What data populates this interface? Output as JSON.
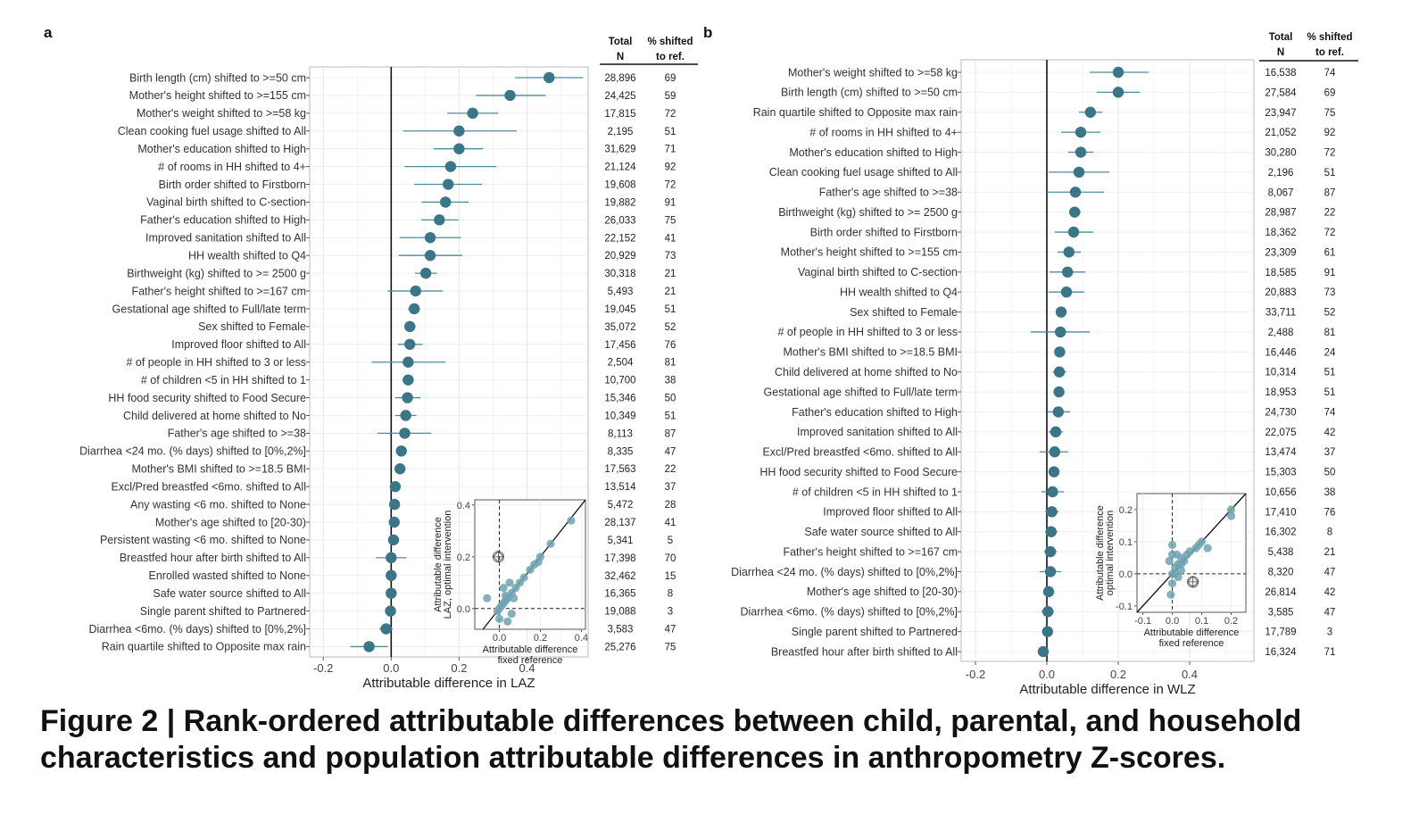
{
  "figure": {
    "caption": "Figure 2 | Rank-ordered attributable differences between child, parental, and household characteristics and population attributable differences in anthropometry Z-scores."
  },
  "colors": {
    "point": "#3a7688",
    "ci": "#4d8b9b",
    "inset_point": "#6fa3b1",
    "grid": "#ebebeb"
  },
  "table_headers": {
    "total_line1": "Total",
    "total_line2": "N",
    "pct_line1": "% shifted",
    "pct_line2": "to ref."
  },
  "chart_data": [
    {
      "panel": "a",
      "type": "scatter",
      "subtype": "forest-plot",
      "xlabel": "Attributable difference in LAZ",
      "xlim": [
        -0.24,
        0.58
      ],
      "xticks": [
        -0.2,
        0.0,
        0.2,
        0.4
      ],
      "xtick_labels": [
        "-0.2",
        "0.0",
        "0.2",
        "0.4"
      ],
      "reference_line": 0,
      "grid": true,
      "rows": [
        {
          "label": "Birth length (cm) shifted to >=50 cm",
          "est": 0.465,
          "lo": 0.365,
          "hi": 0.565,
          "n": "28,896",
          "pct": "69"
        },
        {
          "label": "Mother's height shifted to >=155 cm",
          "est": 0.35,
          "lo": 0.25,
          "hi": 0.455,
          "n": "24,425",
          "pct": "59"
        },
        {
          "label": "Mother's weight shifted to >=58 kg",
          "est": 0.24,
          "lo": 0.165,
          "hi": 0.315,
          "n": "17,815",
          "pct": "72"
        },
        {
          "label": "Clean cooking fuel usage shifted to All",
          "est": 0.2,
          "lo": 0.035,
          "hi": 0.37,
          "n": "2,195",
          "pct": "51"
        },
        {
          "label": "Mother's education shifted to High",
          "est": 0.2,
          "lo": 0.125,
          "hi": 0.27,
          "n": "31,629",
          "pct": "71"
        },
        {
          "label": "# of rooms in HH shifted to 4+",
          "est": 0.175,
          "lo": 0.04,
          "hi": 0.31,
          "n": "21,124",
          "pct": "92"
        },
        {
          "label": "Birth order shifted to Firstborn",
          "est": 0.168,
          "lo": 0.068,
          "hi": 0.268,
          "n": "19,608",
          "pct": "72"
        },
        {
          "label": "Vaginal birth shifted to C-section",
          "est": 0.16,
          "lo": 0.09,
          "hi": 0.228,
          "n": "19,882",
          "pct": "91"
        },
        {
          "label": "Father's education shifted to High",
          "est": 0.142,
          "lo": 0.088,
          "hi": 0.198,
          "n": "26,033",
          "pct": "75"
        },
        {
          "label": "Improved sanitation shifted to All",
          "est": 0.115,
          "lo": 0.025,
          "hi": 0.205,
          "n": "22,152",
          "pct": "41"
        },
        {
          "label": "HH wealth shifted to Q4",
          "est": 0.115,
          "lo": 0.022,
          "hi": 0.21,
          "n": "20,929",
          "pct": "73"
        },
        {
          "label": "Birthweight (kg) shifted to >= 2500 g",
          "est": 0.102,
          "lo": 0.07,
          "hi": 0.135,
          "n": "30,318",
          "pct": "21"
        },
        {
          "label": "Father's height shifted to >=167 cm",
          "est": 0.072,
          "lo": -0.01,
          "hi": 0.152,
          "n": "5,493",
          "pct": "21"
        },
        {
          "label": "Gestational age shifted to Full/late term",
          "est": 0.068,
          "lo": 0.05,
          "hi": 0.085,
          "n": "19,045",
          "pct": "51"
        },
        {
          "label": "Sex shifted to Female",
          "est": 0.055,
          "lo": 0.038,
          "hi": 0.072,
          "n": "35,072",
          "pct": "52"
        },
        {
          "label": "Improved floor shifted to All",
          "est": 0.055,
          "lo": 0.02,
          "hi": 0.092,
          "n": "17,456",
          "pct": "76"
        },
        {
          "label": "# of people in HH shifted to 3 or less",
          "est": 0.05,
          "lo": -0.058,
          "hi": 0.16,
          "n": "2,504",
          "pct": "81"
        },
        {
          "label": "# of children <5 in HH shifted to 1",
          "est": 0.05,
          "lo": 0.033,
          "hi": 0.067,
          "n": "10,700",
          "pct": "38"
        },
        {
          "label": "HH food security shifted to Food Secure",
          "est": 0.048,
          "lo": 0.012,
          "hi": 0.086,
          "n": "15,346",
          "pct": "50"
        },
        {
          "label": "Child delivered at home shifted to No",
          "est": 0.043,
          "lo": 0.012,
          "hi": 0.074,
          "n": "10,349",
          "pct": "51"
        },
        {
          "label": "Father's age shifted to >=38",
          "est": 0.04,
          "lo": -0.04,
          "hi": 0.118,
          "n": "8,113",
          "pct": "87"
        },
        {
          "label": "Diarrhea <24 mo.  (% days) shifted to [0%,2%]",
          "est": 0.03,
          "lo": 0.018,
          "hi": 0.042,
          "n": "8,335",
          "pct": "47"
        },
        {
          "label": "Mother's BMI shifted to >=18.5 BMI",
          "est": 0.026,
          "lo": 0.013,
          "hi": 0.039,
          "n": "17,563",
          "pct": "22"
        },
        {
          "label": "Excl/Pred breastfed <6mo. shifted to All",
          "est": 0.012,
          "lo": 0.004,
          "hi": 0.02,
          "n": "13,514",
          "pct": "37"
        },
        {
          "label": "Any wasting  <6 mo. shifted to None",
          "est": 0.01,
          "lo": 0.0,
          "hi": 0.02,
          "n": "5,472",
          "pct": "28"
        },
        {
          "label": "Mother's age shifted to [20-30)",
          "est": 0.009,
          "lo": -0.002,
          "hi": 0.02,
          "n": "28,137",
          "pct": "41"
        },
        {
          "label": "Persistent wasting  <6 mo. shifted to None",
          "est": 0.007,
          "lo": -0.004,
          "hi": 0.018,
          "n": "5,341",
          "pct": "5"
        },
        {
          "label": "Breastfed hour after birth shifted to All",
          "est": 0.0,
          "lo": -0.045,
          "hi": 0.045,
          "n": "17,398",
          "pct": "70"
        },
        {
          "label": "Enrolled wasted shifted to None",
          "est": 0.0,
          "lo": -0.01,
          "hi": 0.01,
          "n": "32,462",
          "pct": "15"
        },
        {
          "label": "Safe water source shifted to All",
          "est": 0.0,
          "lo": -0.015,
          "hi": 0.015,
          "n": "16,365",
          "pct": "8"
        },
        {
          "label": "Single parent shifted to Partnered",
          "est": -0.002,
          "lo": -0.012,
          "hi": 0.008,
          "n": "19,088",
          "pct": "3"
        },
        {
          "label": "Diarrhea <6mo. (% days) shifted to [0%,2%]",
          "est": -0.015,
          "lo": -0.035,
          "hi": 0.005,
          "n": "3,583",
          "pct": "47"
        },
        {
          "label": "Rain quartile shifted to Opposite max rain",
          "est": -0.065,
          "lo": -0.12,
          "hi": -0.01,
          "n": "25,276",
          "pct": "75"
        }
      ],
      "inset": {
        "type": "scatter",
        "xlabel_line1": "Attributable difference",
        "xlabel_line2": "fixed reference",
        "ylabel_line1": "Attributable difference",
        "ylabel_line2": "LAZ, optimal intervention",
        "xlim": [
          -0.12,
          0.42
        ],
        "ylim": [
          -0.08,
          0.42
        ],
        "xticks": [
          0.0,
          0.2,
          0.4
        ],
        "xtick_labels": [
          "0.0",
          "0.2",
          "0.4"
        ],
        "yticks": [
          0.0,
          0.2,
          0.4
        ],
        "ytick_labels": [
          "0.0",
          "0.2",
          "0.4"
        ],
        "identity_line": true,
        "reference_lines": {
          "x": 0,
          "y": 0
        },
        "highlight_point": {
          "x": -0.005,
          "y": 0.2
        },
        "points": [
          {
            "x": 0.35,
            "y": 0.34
          },
          {
            "x": 0.25,
            "y": 0.25
          },
          {
            "x": 0.2,
            "y": 0.2
          },
          {
            "x": 0.19,
            "y": 0.18
          },
          {
            "x": 0.17,
            "y": 0.17
          },
          {
            "x": 0.15,
            "y": 0.15
          },
          {
            "x": 0.12,
            "y": 0.12
          },
          {
            "x": 0.1,
            "y": 0.1
          },
          {
            "x": 0.08,
            "y": 0.08
          },
          {
            "x": 0.06,
            "y": 0.06
          },
          {
            "x": 0.05,
            "y": 0.1
          },
          {
            "x": 0.04,
            "y": 0.04
          },
          {
            "x": 0.03,
            "y": 0.03
          },
          {
            "x": 0.02,
            "y": 0.02
          },
          {
            "x": 0.01,
            "y": 0.01
          },
          {
            "x": 0.0,
            "y": 0.0
          },
          {
            "x": -0.01,
            "y": -0.01
          },
          {
            "x": 0.02,
            "y": 0.08
          },
          {
            "x": 0.04,
            "y": -0.05
          },
          {
            "x": 0.07,
            "y": 0.04
          },
          {
            "x": 0.0,
            "y": -0.04
          },
          {
            "x": -0.06,
            "y": 0.04
          },
          {
            "x": 0.06,
            "y": -0.02
          },
          {
            "x": 0.03,
            "y": 0.05
          }
        ]
      }
    },
    {
      "panel": "b",
      "type": "scatter",
      "subtype": "forest-plot",
      "xlabel": "Attributable difference in WLZ",
      "xlim": [
        -0.24,
        0.58
      ],
      "xticks": [
        -0.2,
        0.0,
        0.2,
        0.4
      ],
      "xtick_labels": [
        "-0.2",
        "0.0",
        "0.2",
        "0.4"
      ],
      "reference_line": 0,
      "grid": true,
      "rows": [
        {
          "label": "Mother's weight shifted to >=58 kg",
          "est": 0.2,
          "lo": 0.12,
          "hi": 0.285,
          "n": "16,538",
          "pct": "74"
        },
        {
          "label": "Birth length (cm) shifted to >=50 cm",
          "est": 0.2,
          "lo": 0.14,
          "hi": 0.26,
          "n": "27,584",
          "pct": "69"
        },
        {
          "label": "Rain quartile shifted to Opposite max rain",
          "est": 0.122,
          "lo": 0.09,
          "hi": 0.155,
          "n": "23,947",
          "pct": "75"
        },
        {
          "label": "# of rooms in HH shifted to 4+",
          "est": 0.095,
          "lo": 0.04,
          "hi": 0.15,
          "n": "21,052",
          "pct": "92"
        },
        {
          "label": "Mother's education shifted to High",
          "est": 0.095,
          "lo": 0.06,
          "hi": 0.13,
          "n": "30,280",
          "pct": "72"
        },
        {
          "label": "Clean cooking fuel usage shifted to All",
          "est": 0.09,
          "lo": 0.005,
          "hi": 0.175,
          "n": "2,196",
          "pct": "51"
        },
        {
          "label": "Father's age shifted to >=38",
          "est": 0.08,
          "lo": 0.0,
          "hi": 0.16,
          "n": "8,067",
          "pct": "87"
        },
        {
          "label": "Birthweight (kg) shifted to >= 2500 g",
          "est": 0.078,
          "lo": 0.062,
          "hi": 0.095,
          "n": "28,987",
          "pct": "22"
        },
        {
          "label": "Birth order shifted to Firstborn",
          "est": 0.075,
          "lo": 0.022,
          "hi": 0.13,
          "n": "18,362",
          "pct": "72"
        },
        {
          "label": "Mother's height shifted to >=155 cm",
          "est": 0.062,
          "lo": 0.03,
          "hi": 0.095,
          "n": "23,309",
          "pct": "61"
        },
        {
          "label": "Vaginal birth shifted to C-section",
          "est": 0.058,
          "lo": 0.008,
          "hi": 0.108,
          "n": "18,585",
          "pct": "91"
        },
        {
          "label": "HH wealth shifted to Q4",
          "est": 0.055,
          "lo": 0.005,
          "hi": 0.105,
          "n": "20,883",
          "pct": "73"
        },
        {
          "label": "Sex shifted to Female",
          "est": 0.04,
          "lo": 0.032,
          "hi": 0.048,
          "n": "33,711",
          "pct": "52"
        },
        {
          "label": "# of people in HH shifted to 3 or less",
          "est": 0.038,
          "lo": -0.045,
          "hi": 0.12,
          "n": "2,488",
          "pct": "81"
        },
        {
          "label": "Mother's BMI shifted to >=18.5 BMI",
          "est": 0.036,
          "lo": 0.025,
          "hi": 0.047,
          "n": "16,446",
          "pct": "24"
        },
        {
          "label": "Child delivered at home shifted to No",
          "est": 0.035,
          "lo": 0.016,
          "hi": 0.054,
          "n": "10,314",
          "pct": "51"
        },
        {
          "label": "Gestational age shifted to Full/late term",
          "est": 0.034,
          "lo": 0.025,
          "hi": 0.043,
          "n": "18,953",
          "pct": "51"
        },
        {
          "label": "Father's education shifted to High",
          "est": 0.032,
          "lo": 0.002,
          "hi": 0.065,
          "n": "24,730",
          "pct": "74"
        },
        {
          "label": "Improved sanitation shifted to All",
          "est": 0.025,
          "lo": 0.005,
          "hi": 0.045,
          "n": "22,075",
          "pct": "42"
        },
        {
          "label": "Excl/Pred breastfed <6mo. shifted to All",
          "est": 0.022,
          "lo": -0.02,
          "hi": 0.06,
          "n": "13,474",
          "pct": "37"
        },
        {
          "label": "HH food security shifted to Food Secure",
          "est": 0.02,
          "lo": 0.005,
          "hi": 0.035,
          "n": "15,303",
          "pct": "50"
        },
        {
          "label": "# of children <5 in HH shifted to 1",
          "est": 0.016,
          "lo": -0.015,
          "hi": 0.048,
          "n": "10,656",
          "pct": "38"
        },
        {
          "label": "Improved floor shifted to All",
          "est": 0.014,
          "lo": -0.005,
          "hi": 0.033,
          "n": "17,410",
          "pct": "76"
        },
        {
          "label": "Safe water source shifted to All",
          "est": 0.012,
          "lo": -0.005,
          "hi": 0.03,
          "n": "16,302",
          "pct": "8"
        },
        {
          "label": "Father's height shifted to >=167 cm",
          "est": 0.01,
          "lo": -0.008,
          "hi": 0.028,
          "n": "5,438",
          "pct": "21"
        },
        {
          "label": "Diarrhea <24 mo.  (% days) shifted to [0%,2%]",
          "est": 0.01,
          "lo": -0.02,
          "hi": 0.04,
          "n": "8,320",
          "pct": "47"
        },
        {
          "label": "Mother's age shifted to [20-30)",
          "est": 0.005,
          "lo": -0.008,
          "hi": 0.018,
          "n": "26,814",
          "pct": "42"
        },
        {
          "label": "Diarrhea <6mo. (% days) shifted to [0%,2%]",
          "est": 0.003,
          "lo": -0.015,
          "hi": 0.02,
          "n": "3,585",
          "pct": "47"
        },
        {
          "label": "Single parent shifted to Partnered",
          "est": 0.002,
          "lo": -0.008,
          "hi": 0.012,
          "n": "17,789",
          "pct": "3"
        },
        {
          "label": "Breastfed hour after birth shifted to All",
          "est": -0.01,
          "lo": -0.025,
          "hi": 0.005,
          "n": "16,324",
          "pct": "71"
        }
      ],
      "inset": {
        "type": "scatter",
        "xlabel_line1": "Attributable difference",
        "xlabel_line2": "fixed reference",
        "ylabel_line1": "Attributable difference",
        "ylabel_line2": "optimal intervention",
        "xlim": [
          -0.12,
          0.25
        ],
        "ylim": [
          -0.12,
          0.25
        ],
        "xticks": [
          -0.1,
          0.0,
          0.1,
          0.2
        ],
        "xtick_labels": [
          "-0.1",
          "0.0",
          "0.1",
          "0.2"
        ],
        "yticks": [
          -0.1,
          0.0,
          0.1,
          0.2
        ],
        "ytick_labels": [
          "-0.1",
          "0.0",
          "0.1",
          "0.2"
        ],
        "identity_line": true,
        "reference_lines": {
          "x": 0,
          "y": 0
        },
        "highlight_point": {
          "x": 0.07,
          "y": -0.025
        },
        "points": [
          {
            "x": 0.2,
            "y": 0.2
          },
          {
            "x": 0.2,
            "y": 0.18
          },
          {
            "x": 0.12,
            "y": 0.08
          },
          {
            "x": 0.1,
            "y": 0.1
          },
          {
            "x": 0.09,
            "y": 0.09
          },
          {
            "x": 0.08,
            "y": 0.08
          },
          {
            "x": 0.06,
            "y": 0.07
          },
          {
            "x": 0.05,
            "y": 0.06
          },
          {
            "x": 0.04,
            "y": 0.04
          },
          {
            "x": 0.03,
            "y": 0.05
          },
          {
            "x": 0.02,
            "y": 0.03
          },
          {
            "x": 0.01,
            "y": 0.02
          },
          {
            "x": 0.0,
            "y": 0.09
          },
          {
            "x": 0.0,
            "y": 0.06
          },
          {
            "x": 0.01,
            "y": 0.0
          },
          {
            "x": 0.0,
            "y": -0.03
          },
          {
            "x": -0.005,
            "y": -0.065
          },
          {
            "x": 0.03,
            "y": 0.01
          },
          {
            "x": 0.02,
            "y": -0.01
          },
          {
            "x": -0.01,
            "y": 0.04
          },
          {
            "x": 0.0,
            "y": 0.0
          },
          {
            "x": 0.015,
            "y": 0.06
          },
          {
            "x": 0.03,
            "y": 0.03
          }
        ]
      }
    }
  ]
}
